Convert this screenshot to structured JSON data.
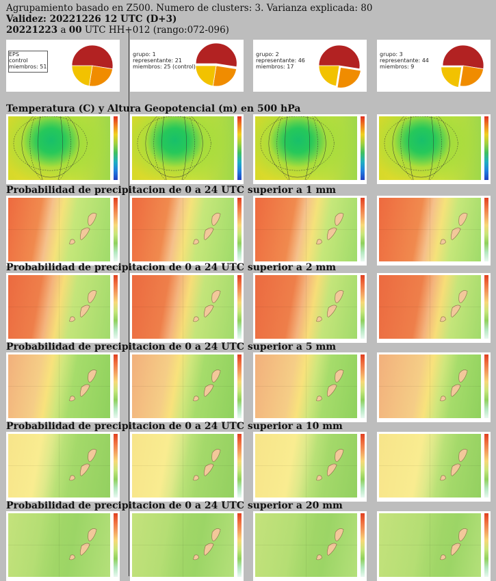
{
  "header": {
    "line1": "Agrupamiento basado en Z500. Numero de clusters: 3. Varianza explicada: 80",
    "line2_bold": "Validez: 20221226 12 UTC (D+3)",
    "line3_date": "20221223",
    "line3_a": " a ",
    "line3_hour": "00",
    "line3_rest": " UTC HH+012 (rango:072-096)"
  },
  "clusters": [
    {
      "l1": "EPS",
      "l2": "control",
      "l3": "miembros: 51"
    },
    {
      "l1": "grupo: 1",
      "l2": "representante: 21",
      "l3": "miembros: 25 (control)"
    },
    {
      "l1": "grupo: 2",
      "l2": "representante: 46",
      "l3": "miembros: 17"
    },
    {
      "l1": "grupo: 3",
      "l2": "representante: 44",
      "l3": "miembros: 9"
    }
  ],
  "sections": [
    {
      "title": "Temperatura (C) y Altura Geopotencial (m) en 500 hPa",
      "kind": "temp"
    },
    {
      "title": "Probabilidad de precipitacion de 0 a 24 UTC superior a 1 mm",
      "kind": "p1"
    },
    {
      "title": "Probabilidad de precipitacion de 0 a 24 UTC superior a 2 mm",
      "kind": "p2"
    },
    {
      "title": "Probabilidad de precipitacion de 0 a 24 UTC superior a 5 mm",
      "kind": "p5"
    },
    {
      "title": "Probabilidad de precipitacion de 0 a 24 UTC superior a 10 mm",
      "kind": "p10"
    },
    {
      "title": "Probabilidad de precipitacion de 0 a 24 UTC superior a 20 mm",
      "kind": "p20"
    }
  ],
  "colors": {
    "background": "#bdbdbd",
    "pie_red": "#b22222",
    "pie_orange": "#f08c00",
    "pie_yellow": "#f2c200"
  }
}
